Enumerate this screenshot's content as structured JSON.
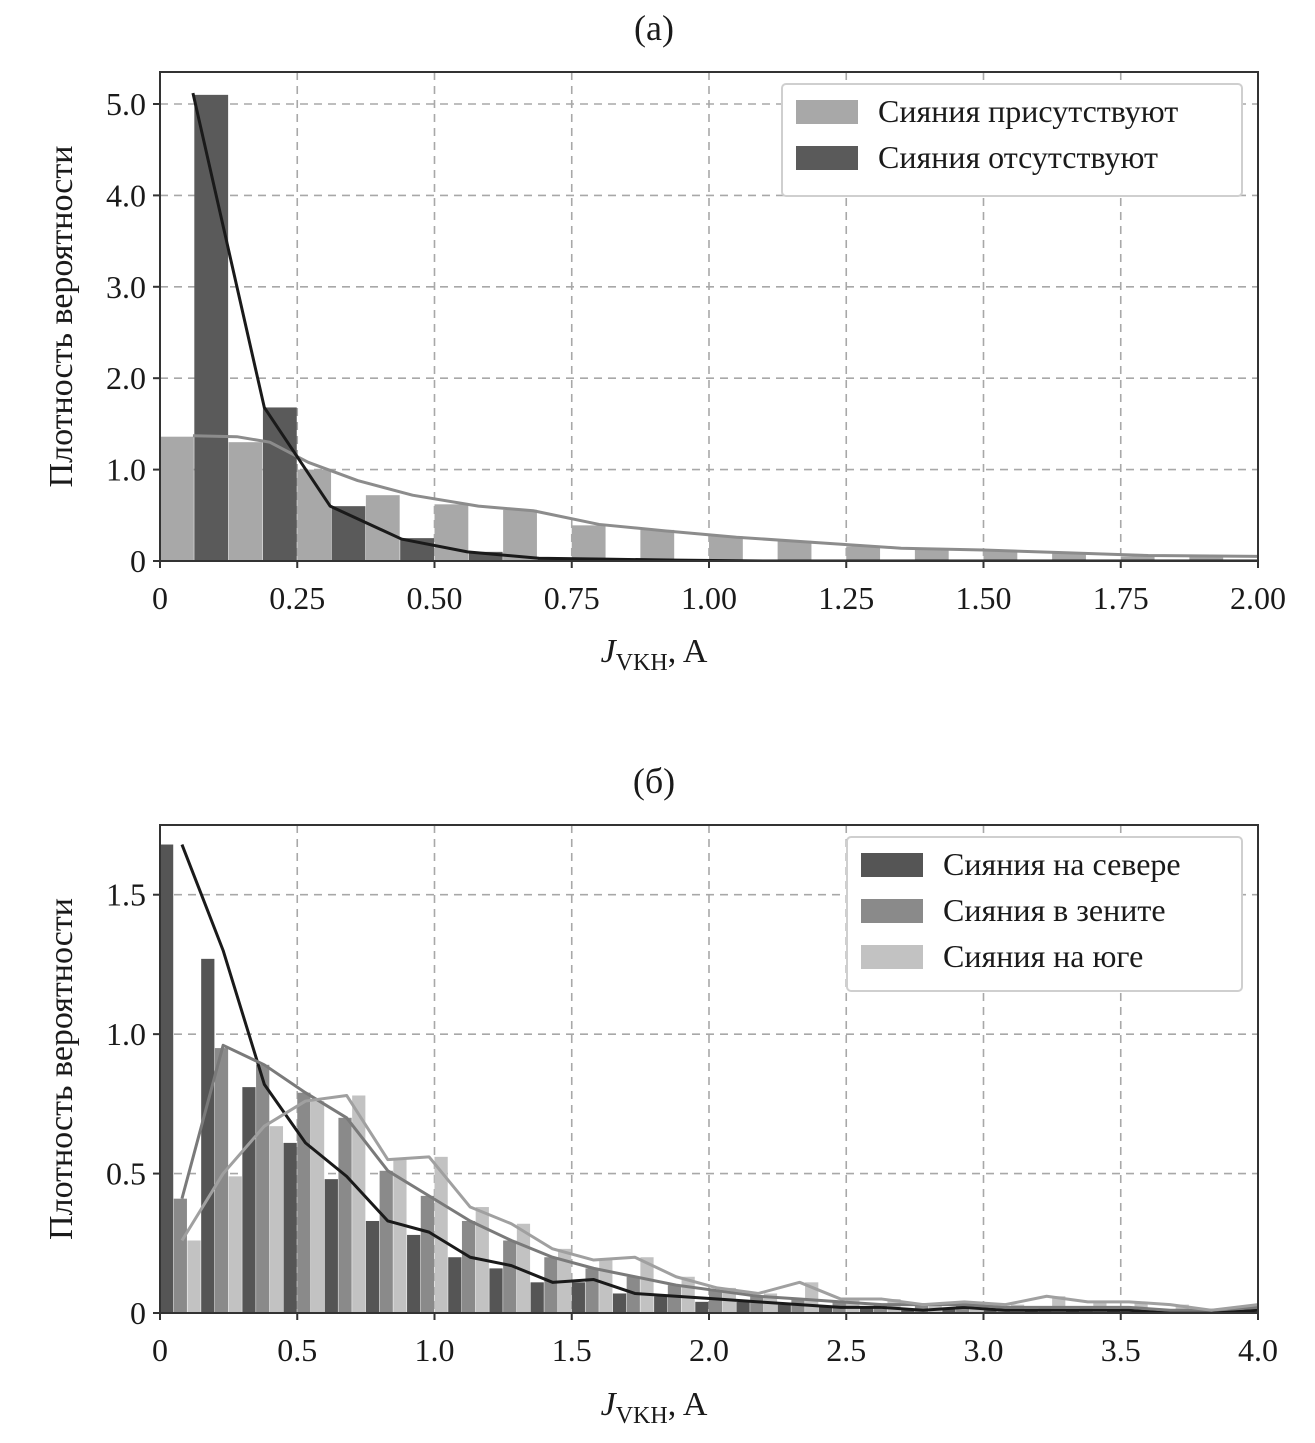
{
  "chart_data": [
    {
      "type": "bar",
      "panel_label": "(a)",
      "xlabel": "J",
      "xlabel_sub": "VKH",
      "xlabel_unit": ", A",
      "ylabel": "Плотность вероятности",
      "xlim": [
        0,
        2.0
      ],
      "ylim": [
        0,
        5.35
      ],
      "grid": true,
      "legend_position": "top-right",
      "xticks": [
        0,
        0.25,
        0.5,
        0.75,
        1.0,
        1.25,
        1.5,
        1.75,
        2.0
      ],
      "xtick_labels": [
        "0",
        "0.25",
        "0.50",
        "0.75",
        "1.00",
        "1.25",
        "1.50",
        "1.75",
        "2.00"
      ],
      "yticks": [
        0,
        1,
        2,
        3,
        4,
        5
      ],
      "ytick_labels": [
        "0",
        "1.0",
        "2.0",
        "3.0",
        "4.0",
        "5.0"
      ],
      "bin_width": 0.125,
      "bin_centers": [
        0.0625,
        0.1875,
        0.3125,
        0.4375,
        0.5625,
        0.6875,
        0.8125,
        0.9375,
        1.0625,
        1.1875,
        1.3125,
        1.4375,
        1.5625,
        1.6875,
        1.8125,
        1.9375
      ],
      "series": [
        {
          "name": "Сияния присутствуют",
          "color": "#a8a8a8",
          "line_color": "#8c8c8c",
          "values": [
            1.36,
            1.3,
            1.0,
            0.72,
            0.62,
            0.56,
            0.39,
            0.34,
            0.27,
            0.22,
            0.16,
            0.13,
            0.11,
            0.09,
            0.05,
            0.05
          ],
          "line_x": [
            0.06,
            0.14,
            0.2,
            0.27,
            0.36,
            0.46,
            0.58,
            0.68,
            0.8,
            0.92,
            1.05,
            1.2,
            1.35,
            1.5,
            1.65,
            1.8,
            2.0
          ],
          "line_y": [
            1.37,
            1.36,
            1.3,
            1.08,
            0.88,
            0.72,
            0.6,
            0.55,
            0.4,
            0.33,
            0.26,
            0.2,
            0.14,
            0.12,
            0.09,
            0.06,
            0.05
          ]
        },
        {
          "name": "Сияния отсутствуют",
          "color": "#5a5a5a",
          "line_color": "#1a1a1a",
          "values": [
            5.1,
            1.68,
            0.6,
            0.25,
            0.1,
            0.03,
            0.02,
            0.01,
            0.0,
            0.0,
            0.0,
            0.0,
            0.0,
            0.0,
            0.0,
            0.0
          ],
          "line_x": [
            0.06,
            0.19,
            0.31,
            0.44,
            0.56,
            0.69,
            0.81,
            0.94,
            1.1,
            2.0
          ],
          "line_y": [
            5.12,
            1.68,
            0.6,
            0.24,
            0.1,
            0.03,
            0.02,
            0.01,
            0.0,
            0.0
          ]
        }
      ]
    },
    {
      "type": "bar",
      "panel_label": "(б)",
      "xlabel": "J",
      "xlabel_sub": "VKH",
      "xlabel_unit": ", A",
      "ylabel": "Плотность вероятности",
      "xlim": [
        0,
        4.0
      ],
      "ylim": [
        0,
        1.75
      ],
      "grid": true,
      "legend_position": "top-right",
      "xticks": [
        0,
        0.5,
        1.0,
        1.5,
        2.0,
        2.5,
        3.0,
        3.5,
        4.0
      ],
      "xtick_labels": [
        "0",
        "0.5",
        "1.0",
        "1.5",
        "2.0",
        "2.5",
        "3.0",
        "3.5",
        "4.0"
      ],
      "yticks": [
        0,
        0.5,
        1.0,
        1.5
      ],
      "ytick_labels": [
        "0",
        "0.5",
        "1.0",
        "1.5"
      ],
      "bin_width": 0.15,
      "bin_centers": [
        0.075,
        0.225,
        0.375,
        0.525,
        0.675,
        0.825,
        0.975,
        1.125,
        1.275,
        1.425,
        1.575,
        1.725,
        1.875,
        2.025,
        2.175,
        2.325,
        2.475,
        2.625,
        2.775,
        2.925,
        3.075,
        3.225,
        3.375,
        3.525,
        3.675,
        3.825,
        3.975
      ],
      "series": [
        {
          "name": "Сияния на севере",
          "color": "#555555",
          "line_color": "#1a1a1a",
          "values": [
            1.68,
            1.27,
            0.81,
            0.61,
            0.48,
            0.33,
            0.28,
            0.2,
            0.16,
            0.11,
            0.11,
            0.07,
            0.06,
            0.04,
            0.04,
            0.03,
            0.02,
            0.02,
            0.01,
            0.02,
            0.01,
            0.01,
            0.01,
            0.01,
            0.0,
            0.0,
            0.01
          ],
          "line_x": [
            0.08,
            0.23,
            0.38,
            0.53,
            0.68,
            0.83,
            0.98,
            1.13,
            1.28,
            1.43,
            1.58,
            1.73,
            1.88,
            2.03,
            2.18,
            2.33,
            2.48,
            2.63,
            2.78,
            2.93,
            3.08,
            3.23,
            3.38,
            3.53,
            3.68,
            3.83,
            4.0
          ],
          "line_y": [
            1.68,
            1.3,
            0.82,
            0.61,
            0.49,
            0.33,
            0.29,
            0.2,
            0.17,
            0.11,
            0.12,
            0.07,
            0.06,
            0.05,
            0.04,
            0.03,
            0.02,
            0.02,
            0.01,
            0.02,
            0.01,
            0.01,
            0.01,
            0.01,
            0.0,
            0.0,
            0.01
          ]
        },
        {
          "name": "Сияния в зените",
          "color": "#8a8a8a",
          "line_color": "#7a7a7a",
          "values": [
            0.41,
            0.95,
            0.89,
            0.79,
            0.7,
            0.51,
            0.42,
            0.33,
            0.26,
            0.2,
            0.16,
            0.13,
            0.1,
            0.08,
            0.06,
            0.05,
            0.04,
            0.03,
            0.03,
            0.03,
            0.02,
            0.02,
            0.02,
            0.02,
            0.01,
            0.01,
            0.02
          ],
          "line_x": [
            0.08,
            0.23,
            0.38,
            0.53,
            0.68,
            0.83,
            0.98,
            1.13,
            1.28,
            1.43,
            1.58,
            1.73,
            1.88,
            2.03,
            2.18,
            2.33,
            2.48,
            2.63,
            2.78,
            2.93,
            3.08,
            3.23,
            3.38,
            3.53,
            3.68,
            3.83,
            4.0
          ],
          "line_y": [
            0.41,
            0.96,
            0.89,
            0.79,
            0.7,
            0.51,
            0.42,
            0.33,
            0.26,
            0.2,
            0.16,
            0.13,
            0.1,
            0.08,
            0.06,
            0.05,
            0.04,
            0.03,
            0.03,
            0.03,
            0.02,
            0.02,
            0.02,
            0.02,
            0.01,
            0.01,
            0.02
          ]
        },
        {
          "name": "Сияния на юге",
          "color": "#c2c2c2",
          "line_color": "#a0a0a0",
          "values": [
            0.26,
            0.49,
            0.67,
            0.76,
            0.78,
            0.55,
            0.56,
            0.38,
            0.32,
            0.23,
            0.19,
            0.2,
            0.13,
            0.09,
            0.07,
            0.11,
            0.05,
            0.05,
            0.03,
            0.04,
            0.03,
            0.06,
            0.04,
            0.04,
            0.03,
            0.01,
            0.03
          ],
          "line_x": [
            0.08,
            0.23,
            0.38,
            0.53,
            0.68,
            0.83,
            0.98,
            1.13,
            1.28,
            1.43,
            1.58,
            1.73,
            1.88,
            2.03,
            2.18,
            2.33,
            2.48,
            2.63,
            2.78,
            2.93,
            3.08,
            3.23,
            3.38,
            3.53,
            3.68,
            3.83,
            4.0
          ],
          "line_y": [
            0.26,
            0.5,
            0.67,
            0.76,
            0.78,
            0.55,
            0.56,
            0.38,
            0.32,
            0.23,
            0.19,
            0.2,
            0.13,
            0.09,
            0.07,
            0.11,
            0.05,
            0.05,
            0.03,
            0.04,
            0.03,
            0.06,
            0.04,
            0.04,
            0.03,
            0.01,
            0.03
          ]
        }
      ]
    }
  ]
}
